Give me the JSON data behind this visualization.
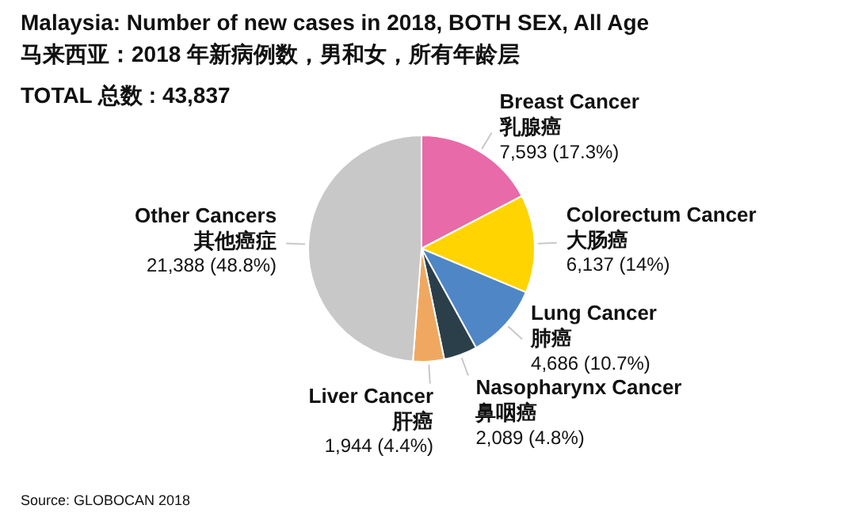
{
  "chart_data": {
    "type": "pie",
    "title": "Malaysia: Number of new cases in 2018, BOTH SEX, All Age",
    "subtitle": "马来西亚：2018 年新病例数，男和女，所有年龄层",
    "categories": [
      "Breast Cancer\n乳腺癌",
      "Colorectum Cancer\n大肠癌",
      "Lung Cancer\n肺癌",
      "Nasopharynx Cancer\n鼻咽癌",
      "Liver Cancer\n肝癌",
      "Other Cancers\n其他癌症"
    ],
    "values": [
      7593,
      6137,
      4686,
      2089,
      1944,
      21388
    ],
    "value_labels": [
      "7,593 (17.3%)",
      "6,137 (14%)",
      "4,686 (10.7%)",
      "2,089 (4.8%)",
      "1,944 (4.4%)",
      "21,388 (48.8%)"
    ],
    "colors": [
      "#e86aa8",
      "#ffd400",
      "#4f86c6",
      "#2b3f4a",
      "#f0a860",
      "#c8c8c8"
    ],
    "legend": false,
    "annotations": [
      "TOTAL 总数 : 43,837",
      "Source: GLOBOCAN 2018"
    ]
  }
}
